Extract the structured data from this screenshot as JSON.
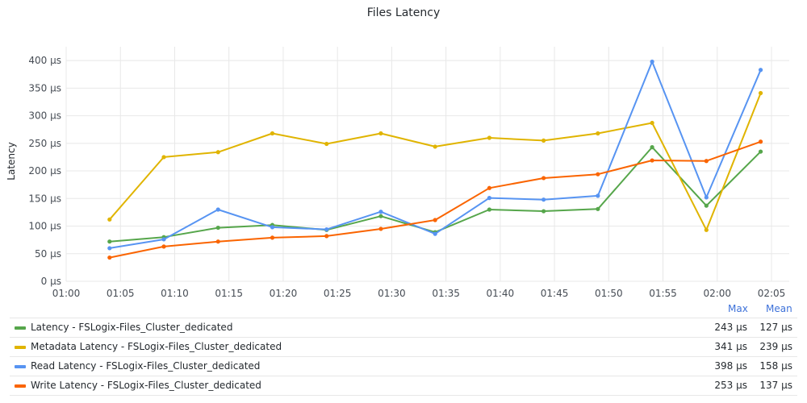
{
  "chart_data": {
    "type": "line",
    "title": "Files Latency",
    "xlabel": "",
    "ylabel": "Latency",
    "ylim": [
      0,
      425
    ],
    "y_ticks": [
      "0 µs",
      "50 µs",
      "100 µs",
      "150 µs",
      "200 µs",
      "250 µs",
      "300 µs",
      "350 µs",
      "400 µs"
    ],
    "x_ticks": [
      "01:00",
      "01:05",
      "01:10",
      "01:15",
      "01:20",
      "01:25",
      "01:30",
      "01:35",
      "01:40",
      "01:45",
      "01:50",
      "01:55",
      "02:00",
      "02:05"
    ],
    "x": [
      "01:04",
      "01:09",
      "01:14",
      "01:19",
      "01:24",
      "01:29",
      "01:34",
      "01:39",
      "01:44",
      "01:49",
      "01:54",
      "01:59",
      "02:04"
    ],
    "grid": true,
    "legend_placement": "bottom",
    "legend_columns": [
      "Max",
      "Mean"
    ],
    "series": [
      {
        "name": "Latency - FSLogix-Files_Cluster_dedicated",
        "color": "#56a64b",
        "values": [
          72,
          80,
          97,
          102,
          93,
          118,
          89,
          130,
          127,
          131,
          243,
          137,
          235
        ],
        "max": "243 µs",
        "mean": "127 µs"
      },
      {
        "name": "Metadata Latency - FSLogix-Files_Cluster_dedicated",
        "color": "#e0b400",
        "values": [
          112,
          225,
          234,
          268,
          249,
          268,
          244,
          260,
          255,
          268,
          287,
          93,
          341
        ],
        "max": "341 µs",
        "mean": "239 µs"
      },
      {
        "name": "Read Latency - FSLogix-Files_Cluster_dedicated",
        "color": "#5794f2",
        "values": [
          60,
          76,
          130,
          98,
          94,
          126,
          86,
          151,
          148,
          155,
          398,
          152,
          383
        ],
        "max": "398 µs",
        "mean": "158 µs"
      },
      {
        "name": "Write Latency - FSLogix-Files_Cluster_dedicated",
        "color": "#fa6400",
        "values": [
          43,
          63,
          72,
          79,
          82,
          95,
          111,
          169,
          187,
          194,
          219,
          218,
          253
        ],
        "max": "253 µs",
        "mean": "137 µs"
      }
    ]
  }
}
